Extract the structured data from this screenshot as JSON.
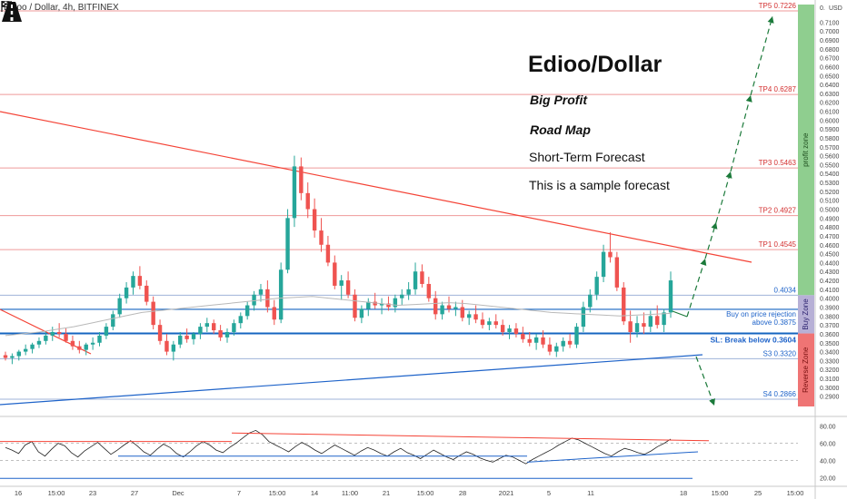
{
  "symbol": "Edioo / Dollar, 4h, BITFINEX",
  "annotations": {
    "title": "Edioo/Dollar",
    "big_profit": "Big Profit",
    "road_map": "Road Map",
    "short_term": "Short-Term Forecast",
    "sample": "This is a sample forecast"
  },
  "icons": {
    "flag": "checkered-flag-icon",
    "road": "road-icon"
  },
  "colors": {
    "up_candle": "#26a69a",
    "down_candle": "#ef5350",
    "target_line": "#ef9a9a",
    "support_line": "#1565c0",
    "trend_red": "#f44336",
    "trend_blue": "#1e63c9",
    "forecast_arrow": "#1b7a3a",
    "profit_zone": "#8fce8f",
    "buy_zone": "#b7b0d6",
    "reverse_zone": "#ef7474"
  },
  "chart_data": {
    "type": "candlestick",
    "price_axis": {
      "range": [
        0.28,
        0.73
      ],
      "ticks": [
        "0.7100",
        "0.7000",
        "0.6900",
        "0.6800",
        "0.6700",
        "0.6600",
        "0.6500",
        "0.6400",
        "0.6300",
        "0.6200",
        "0.6100",
        "0.6000",
        "0.5900",
        "0.5800",
        "0.5700",
        "0.5600",
        "0.5500",
        "0.5400",
        "0.5300",
        "0.5200",
        "0.5100",
        "0.5000",
        "0.4900",
        "0.4800",
        "0.4700",
        "0.4600",
        "0.4500",
        "0.4400",
        "0.4300",
        "0.4200",
        "0.4100",
        "0.4000",
        "0.3900",
        "0.3800",
        "0.3700",
        "0.3600",
        "0.3500",
        "0.3400",
        "0.3300",
        "0.3200",
        "0.3100",
        "0.3000",
        "0.2900"
      ],
      "currency_label": "USD",
      "top_tick": "0."
    },
    "time_axis": [
      "16",
      "15:00",
      "23",
      "27",
      "Dec",
      "7",
      "15:00",
      "14",
      "11:00",
      "21",
      "15:00",
      "28",
      "2021",
      "5",
      "11",
      "18",
      "15:00",
      "25",
      "15:00"
    ],
    "levels": [
      {
        "label": "TP5",
        "value": 0.7226,
        "text": "TP5  0.7226"
      },
      {
        "label": "TP4",
        "value": 0.6287,
        "text": "TP4  0.6287"
      },
      {
        "label": "TP3",
        "value": 0.5463,
        "text": "TP3  0.5463"
      },
      {
        "label": "TP2",
        "value": 0.4927,
        "text": "TP2  0.4927"
      },
      {
        "label": "TP1",
        "value": 0.4545,
        "text": "TP1  0.4545"
      },
      {
        "label": "entry",
        "value": 0.4034,
        "text": "0.4034"
      },
      {
        "label": "buy",
        "value": 0.3875,
        "text": "Buy on price rejection above 0.3875",
        "text_lines": [
          "Buy on price rejection",
          "above 0.3875"
        ]
      },
      {
        "label": "SL",
        "value": 0.3604,
        "text": "SL: Break below 0.3604"
      },
      {
        "label": "S3",
        "value": 0.332,
        "text": "S3  0.3320"
      },
      {
        "label": "S4",
        "value": 0.2866,
        "text": "S4  0.2866"
      }
    ],
    "zones": [
      {
        "name": "profit zone",
        "from": 0.4034,
        "to": 0.73
      },
      {
        "name": "Buy Zone",
        "from": 0.3604,
        "to": 0.4034
      },
      {
        "name": "Reverse Zone",
        "from": 0.2866,
        "to": 0.3604
      }
    ],
    "candles": [
      [
        0.336,
        0.34,
        0.33,
        0.333
      ],
      [
        0.333,
        0.338,
        0.326,
        0.335
      ],
      [
        0.335,
        0.342,
        0.33,
        0.34
      ],
      [
        0.34,
        0.348,
        0.336,
        0.343
      ],
      [
        0.343,
        0.35,
        0.338,
        0.348
      ],
      [
        0.348,
        0.356,
        0.344,
        0.352
      ],
      [
        0.352,
        0.362,
        0.348,
        0.358
      ],
      [
        0.358,
        0.368,
        0.352,
        0.362
      ],
      [
        0.362,
        0.372,
        0.356,
        0.36
      ],
      [
        0.36,
        0.366,
        0.35,
        0.352
      ],
      [
        0.352,
        0.358,
        0.342,
        0.346
      ],
      [
        0.346,
        0.352,
        0.338,
        0.342
      ],
      [
        0.342,
        0.35,
        0.336,
        0.348
      ],
      [
        0.348,
        0.356,
        0.342,
        0.35
      ],
      [
        0.35,
        0.362,
        0.346,
        0.358
      ],
      [
        0.358,
        0.372,
        0.354,
        0.368
      ],
      [
        0.368,
        0.386,
        0.364,
        0.382
      ],
      [
        0.382,
        0.405,
        0.378,
        0.4
      ],
      [
        0.4,
        0.418,
        0.394,
        0.412
      ],
      [
        0.412,
        0.43,
        0.404,
        0.425
      ],
      [
        0.425,
        0.436,
        0.41,
        0.414
      ],
      [
        0.414,
        0.42,
        0.392,
        0.396
      ],
      [
        0.396,
        0.402,
        0.365,
        0.37
      ],
      [
        0.37,
        0.376,
        0.348,
        0.352
      ],
      [
        0.352,
        0.36,
        0.336,
        0.34
      ],
      [
        0.34,
        0.352,
        0.33,
        0.348
      ],
      [
        0.348,
        0.362,
        0.344,
        0.358
      ],
      [
        0.358,
        0.366,
        0.35,
        0.354
      ],
      [
        0.354,
        0.362,
        0.348,
        0.36
      ],
      [
        0.36,
        0.372,
        0.354,
        0.368
      ],
      [
        0.368,
        0.378,
        0.362,
        0.372
      ],
      [
        0.372,
        0.376,
        0.36,
        0.364
      ],
      [
        0.364,
        0.37,
        0.352,
        0.356
      ],
      [
        0.356,
        0.366,
        0.35,
        0.362
      ],
      [
        0.362,
        0.376,
        0.358,
        0.372
      ],
      [
        0.372,
        0.384,
        0.366,
        0.38
      ],
      [
        0.38,
        0.396,
        0.376,
        0.392
      ],
      [
        0.392,
        0.408,
        0.386,
        0.404
      ],
      [
        0.404,
        0.416,
        0.396,
        0.41
      ],
      [
        0.41,
        0.42,
        0.384,
        0.39
      ],
      [
        0.39,
        0.398,
        0.37,
        0.376
      ],
      [
        0.376,
        0.44,
        0.372,
        0.432
      ],
      [
        0.432,
        0.5,
        0.428,
        0.49
      ],
      [
        0.49,
        0.56,
        0.48,
        0.548
      ],
      [
        0.548,
        0.558,
        0.51,
        0.518
      ],
      [
        0.518,
        0.53,
        0.49,
        0.5
      ],
      [
        0.5,
        0.512,
        0.468,
        0.476
      ],
      [
        0.476,
        0.49,
        0.452,
        0.46
      ],
      [
        0.46,
        0.47,
        0.436,
        0.44
      ],
      [
        0.44,
        0.448,
        0.41,
        0.414
      ],
      [
        0.414,
        0.426,
        0.398,
        0.42
      ],
      [
        0.42,
        0.43,
        0.4,
        0.404
      ],
      [
        0.404,
        0.41,
        0.374,
        0.378
      ],
      [
        0.378,
        0.392,
        0.372,
        0.388
      ],
      [
        0.388,
        0.4,
        0.38,
        0.396
      ],
      [
        0.396,
        0.406,
        0.388,
        0.392
      ],
      [
        0.392,
        0.4,
        0.382,
        0.394
      ],
      [
        0.394,
        0.402,
        0.386,
        0.39
      ],
      [
        0.39,
        0.404,
        0.384,
        0.4
      ],
      [
        0.4,
        0.41,
        0.392,
        0.404
      ],
      [
        0.404,
        0.418,
        0.398,
        0.41
      ],
      [
        0.41,
        0.44,
        0.404,
        0.43
      ],
      [
        0.43,
        0.438,
        0.412,
        0.416
      ],
      [
        0.416,
        0.424,
        0.396,
        0.4
      ],
      [
        0.4,
        0.408,
        0.376,
        0.382
      ],
      [
        0.382,
        0.396,
        0.376,
        0.392
      ],
      [
        0.392,
        0.402,
        0.384,
        0.388
      ],
      [
        0.388,
        0.396,
        0.38,
        0.39
      ],
      [
        0.39,
        0.398,
        0.374,
        0.378
      ],
      [
        0.378,
        0.386,
        0.37,
        0.382
      ],
      [
        0.382,
        0.392,
        0.372,
        0.376
      ],
      [
        0.376,
        0.384,
        0.366,
        0.37
      ],
      [
        0.37,
        0.378,
        0.364,
        0.374
      ],
      [
        0.374,
        0.382,
        0.366,
        0.37
      ],
      [
        0.37,
        0.376,
        0.358,
        0.362
      ],
      [
        0.362,
        0.37,
        0.354,
        0.366
      ],
      [
        0.366,
        0.372,
        0.356,
        0.36
      ],
      [
        0.36,
        0.368,
        0.35,
        0.354
      ],
      [
        0.354,
        0.362,
        0.346,
        0.35
      ],
      [
        0.35,
        0.36,
        0.342,
        0.356
      ],
      [
        0.356,
        0.364,
        0.344,
        0.348
      ],
      [
        0.348,
        0.356,
        0.336,
        0.34
      ],
      [
        0.34,
        0.35,
        0.334,
        0.346
      ],
      [
        0.346,
        0.356,
        0.34,
        0.352
      ],
      [
        0.352,
        0.36,
        0.344,
        0.348
      ],
      [
        0.348,
        0.372,
        0.344,
        0.368
      ],
      [
        0.368,
        0.396,
        0.362,
        0.39
      ],
      [
        0.39,
        0.41,
        0.384,
        0.404
      ],
      [
        0.404,
        0.43,
        0.398,
        0.424
      ],
      [
        0.424,
        0.46,
        0.418,
        0.452
      ],
      [
        0.452,
        0.474,
        0.44,
        0.446
      ],
      [
        0.446,
        0.452,
        0.408,
        0.412
      ],
      [
        0.412,
        0.418,
        0.37,
        0.374
      ],
      [
        0.374,
        0.386,
        0.35,
        0.362
      ],
      [
        0.362,
        0.38,
        0.356,
        0.372
      ],
      [
        0.372,
        0.384,
        0.36,
        0.368
      ],
      [
        0.368,
        0.386,
        0.362,
        0.38
      ],
      [
        0.38,
        0.392,
        0.366,
        0.37
      ],
      [
        0.37,
        0.388,
        0.362,
        0.384
      ],
      [
        0.384,
        0.43,
        0.378,
        0.42
      ]
    ],
    "moving_average": [
      0.358,
      0.36,
      0.362,
      0.365,
      0.368,
      0.372,
      0.376,
      0.38,
      0.384,
      0.386,
      0.388,
      0.39,
      0.392,
      0.394,
      0.396,
      0.398,
      0.4,
      0.401,
      0.402,
      0.4,
      0.398,
      0.396,
      0.394,
      0.392,
      0.393,
      0.394,
      0.395,
      0.394,
      0.392,
      0.39,
      0.388,
      0.386,
      0.384,
      0.383,
      0.382,
      0.381,
      0.38,
      0.381,
      0.382,
      0.383
    ],
    "oscillator": {
      "ticks": [
        "80.00",
        "60.00",
        "40.00",
        "20.00"
      ],
      "range": [
        15,
        85
      ],
      "values": [
        55,
        52,
        48,
        58,
        62,
        50,
        45,
        53,
        60,
        57,
        49,
        44,
        51,
        56,
        61,
        54,
        47,
        52,
        58,
        63,
        57,
        50,
        46,
        53,
        59,
        55,
        48,
        44,
        50,
        57,
        62,
        58,
        52,
        49,
        55,
        60,
        66,
        72,
        75,
        70,
        62,
        58,
        54,
        50,
        56,
        61,
        57,
        52,
        48,
        53,
        58,
        54,
        50,
        46,
        51,
        55,
        52,
        48,
        45,
        50,
        54,
        49,
        46,
        42,
        47,
        52,
        48,
        44,
        41,
        46,
        50,
        47,
        43,
        40,
        38,
        42,
        46,
        44,
        40,
        36,
        41,
        45,
        49,
        53,
        58,
        62,
        66,
        64,
        60,
        56,
        52,
        48,
        45,
        50,
        54,
        52,
        49,
        47,
        51,
        56,
        60,
        65
      ]
    }
  }
}
